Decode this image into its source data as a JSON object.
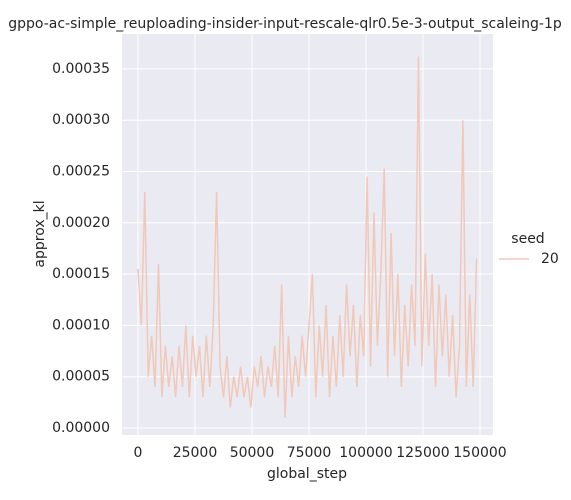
{
  "chart_data": {
    "type": "line",
    "title": "gppo-ac-simple_reuploading-insider-input-rescale-qlr0.5e-3-output_scaleing-1p",
    "x_label": "global_step",
    "y_label": "approx_kl",
    "legend_title": "seed",
    "legend_position": "right",
    "grid": true,
    "x": [
      0,
      1500,
      3000,
      4500,
      6000,
      7500,
      9000,
      10500,
      12000,
      13500,
      15000,
      16500,
      18000,
      19500,
      21000,
      22500,
      24000,
      25500,
      27000,
      28500,
      30000,
      31500,
      33000,
      34500,
      36000,
      37500,
      39000,
      40500,
      42000,
      43500,
      45000,
      46500,
      48000,
      49500,
      51000,
      52500,
      54000,
      55500,
      57000,
      58500,
      60000,
      61500,
      63000,
      64500,
      66000,
      67500,
      69000,
      70500,
      72000,
      73500,
      75000,
      76500,
      78000,
      79500,
      81000,
      82500,
      84000,
      85500,
      87000,
      88500,
      90000,
      91500,
      93000,
      94500,
      96000,
      97500,
      99000,
      100500,
      102000,
      103500,
      105000,
      106500,
      108000,
      109500,
      111000,
      112500,
      114000,
      115500,
      117000,
      118500,
      120000,
      121500,
      123000,
      124500,
      126000,
      127500,
      129000,
      130500,
      132000,
      133500,
      135000,
      136500,
      138000,
      139500,
      141000,
      142500,
      144000,
      145500,
      147000,
      148500
    ],
    "series": [
      {
        "name": "20",
        "color": "#f2c8b8",
        "values": [
          0.000155,
          0.0001,
          0.00023,
          5e-05,
          9e-05,
          4e-05,
          0.00016,
          3e-05,
          8e-05,
          4e-05,
          7e-05,
          3e-05,
          8e-05,
          4e-05,
          0.0001,
          3e-05,
          9e-05,
          5e-05,
          8e-05,
          3e-05,
          9e-05,
          4e-05,
          0.0001,
          0.00023,
          6e-05,
          3e-05,
          7e-05,
          2e-05,
          5e-05,
          3e-05,
          6e-05,
          3e-05,
          5e-05,
          2e-05,
          6e-05,
          4e-05,
          7e-05,
          3e-05,
          6e-05,
          4e-05,
          8e-05,
          3e-05,
          0.00014,
          1e-05,
          9e-05,
          3e-05,
          7e-05,
          4e-05,
          9e-05,
          5e-05,
          0.0001,
          0.00015,
          3e-05,
          0.0001,
          5e-05,
          0.00012,
          3e-05,
          9e-05,
          4e-05,
          0.00011,
          5e-05,
          0.00014,
          7e-05,
          0.00012,
          4e-05,
          0.00011,
          7e-05,
          0.000245,
          6e-05,
          0.00021,
          8e-05,
          0.00015,
          0.000253,
          5e-05,
          0.00019,
          7e-05,
          0.00015,
          4e-05,
          0.00012,
          6e-05,
          0.00014,
          8e-05,
          0.000362,
          6e-05,
          0.00017,
          8e-05,
          0.00015,
          4e-05,
          0.00014,
          7e-05,
          0.00013,
          5e-05,
          0.00011,
          3e-05,
          8e-05,
          0.0003,
          4e-05,
          0.00013,
          4e-05,
          0.000165
        ]
      }
    ],
    "xlim": [
      -7000,
      155700
    ],
    "ylim": [
      -6.8e-06,
      0.000384
    ],
    "xticks": [
      0,
      25000,
      50000,
      75000,
      100000,
      125000,
      150000
    ],
    "yticks": [
      {
        "value": 0,
        "label": "0.00000"
      },
      {
        "value": 5e-05,
        "label": "0.00005"
      },
      {
        "value": 0.0001,
        "label": "0.00010"
      },
      {
        "value": 0.00015,
        "label": "0.00015"
      },
      {
        "value": 0.0002,
        "label": "0.00020"
      },
      {
        "value": 0.00025,
        "label": "0.00025"
      },
      {
        "value": 0.0003,
        "label": "0.00030"
      },
      {
        "value": 0.00035,
        "label": "0.00035"
      }
    ]
  }
}
